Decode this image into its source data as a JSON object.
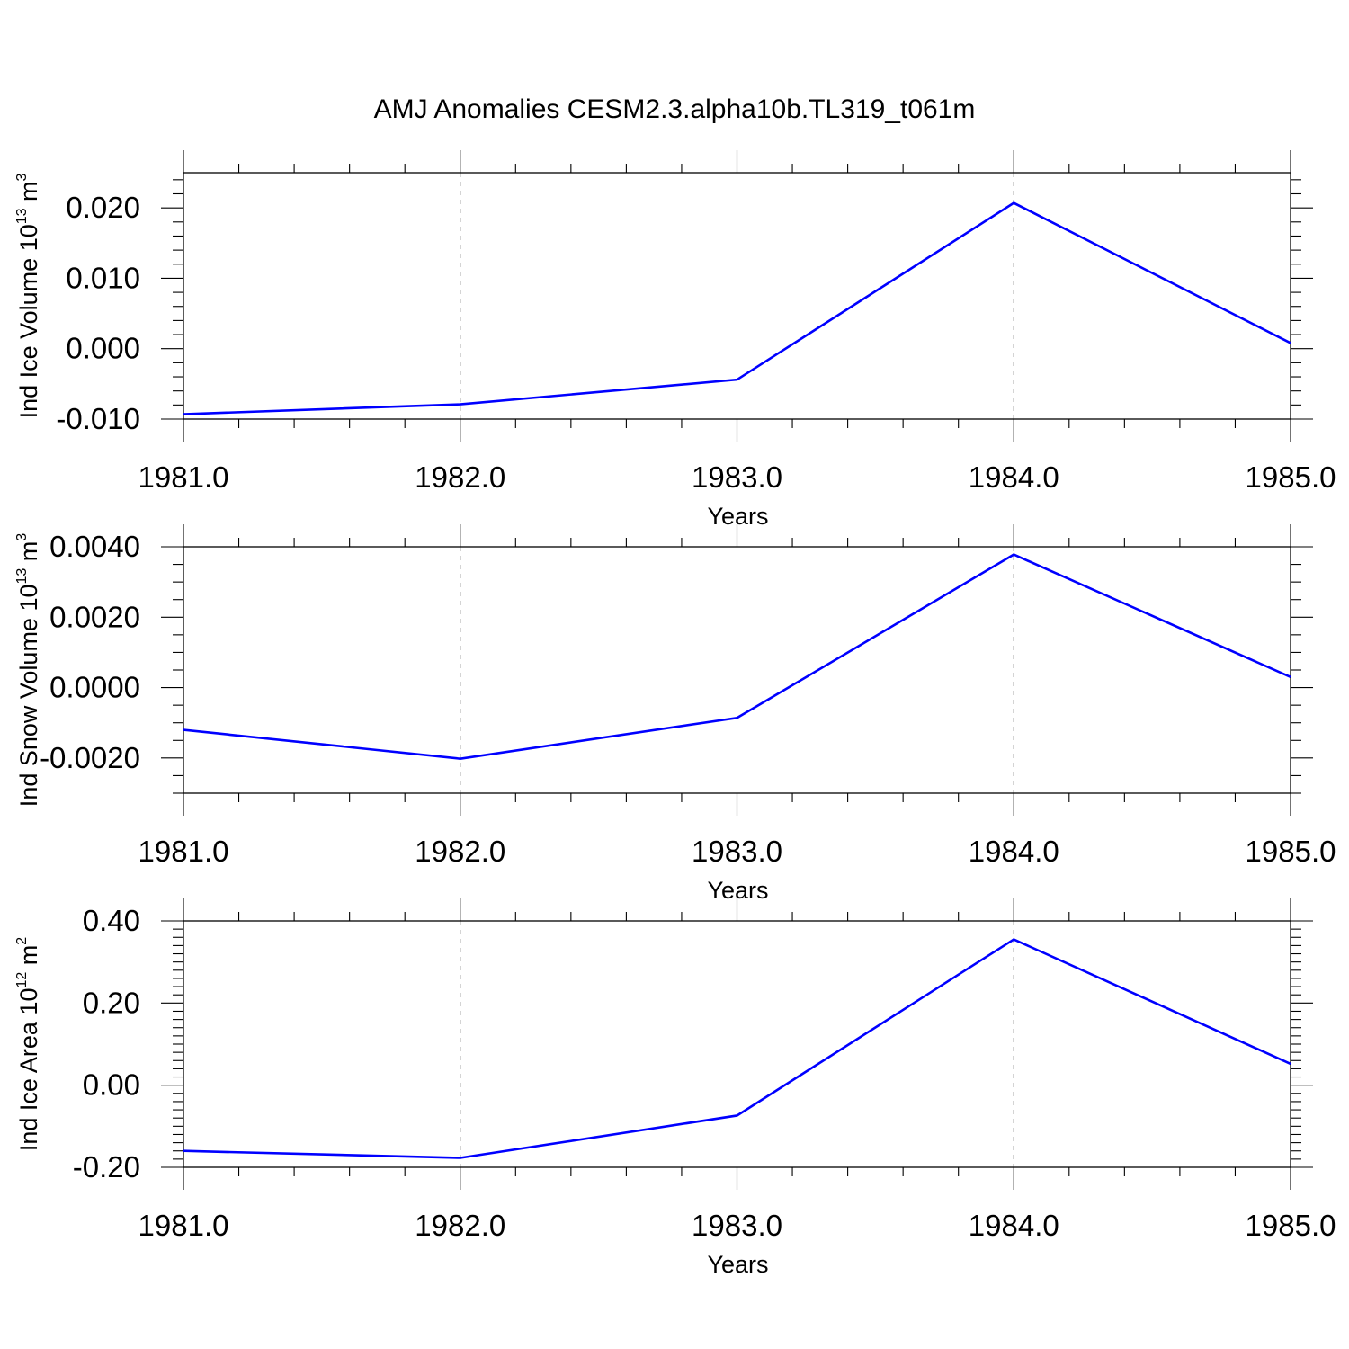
{
  "title": "AMJ Anomalies CESM2.3.alpha10b.TL319_t061m",
  "chart_data": [
    {
      "type": "line",
      "xlabel": "Years",
      "ylabel": {
        "text": "Ind Ice Volume 10",
        "exp": "13",
        "unit": " m",
        "unit_exp": "3"
      },
      "xlim": [
        1981,
        1985
      ],
      "ylim": [
        -0.01,
        0.025
      ],
      "x_ticks": [
        1981,
        1982,
        1983,
        1984,
        1985
      ],
      "x_tick_labels": [
        "1981.0",
        "1982.0",
        "1983.0",
        "1984.0",
        "1985.0"
      ],
      "y_ticks": [
        -0.01,
        0.0,
        0.01,
        0.02
      ],
      "y_tick_labels": [
        "-0.010",
        "0.000",
        "0.010",
        "0.020"
      ],
      "grid": "vertical dashed at x ticks",
      "color": "#0000ff",
      "x": [
        1981,
        1982,
        1983,
        1984,
        1985
      ],
      "values": [
        -0.0093,
        -0.0079,
        -0.0044,
        0.0207,
        0.0008
      ]
    },
    {
      "type": "line",
      "xlabel": "Years",
      "ylabel": {
        "text": "Ind Snow Volume 10",
        "exp": "13",
        "unit": " m",
        "unit_exp": "3"
      },
      "xlim": [
        1981,
        1985
      ],
      "ylim": [
        -0.003,
        0.004
      ],
      "x_ticks": [
        1981,
        1982,
        1983,
        1984,
        1985
      ],
      "x_tick_labels": [
        "1981.0",
        "1982.0",
        "1983.0",
        "1984.0",
        "1985.0"
      ],
      "y_ticks": [
        -0.002,
        0.0,
        0.002,
        0.004
      ],
      "y_tick_labels": [
        "-0.0020",
        "0.0000",
        "0.0020",
        "0.0040"
      ],
      "grid": "vertical dashed at x ticks",
      "color": "#0000ff",
      "x": [
        1981,
        1982,
        1983,
        1984,
        1985
      ],
      "values": [
        -0.0012,
        -0.00202,
        -0.00086,
        0.00378,
        0.0003
      ]
    },
    {
      "type": "line",
      "xlabel": "Years",
      "ylabel": {
        "text": "Ind Ice Area 10",
        "exp": "12",
        "unit": " m",
        "unit_exp": "2"
      },
      "xlim": [
        1981,
        1985
      ],
      "ylim": [
        -0.2,
        0.4
      ],
      "x_ticks": [
        1981,
        1982,
        1983,
        1984,
        1985
      ],
      "x_tick_labels": [
        "1981.0",
        "1982.0",
        "1983.0",
        "1984.0",
        "1985.0"
      ],
      "y_ticks": [
        -0.2,
        0.0,
        0.2,
        0.4
      ],
      "y_tick_labels": [
        "-0.20",
        "0.00",
        "0.20",
        "0.40"
      ],
      "grid": "vertical dashed at x ticks",
      "color": "#0000ff",
      "x": [
        1981,
        1982,
        1983,
        1984,
        1985
      ],
      "values": [
        -0.16,
        -0.177,
        -0.074,
        0.355,
        0.052
      ]
    }
  ]
}
